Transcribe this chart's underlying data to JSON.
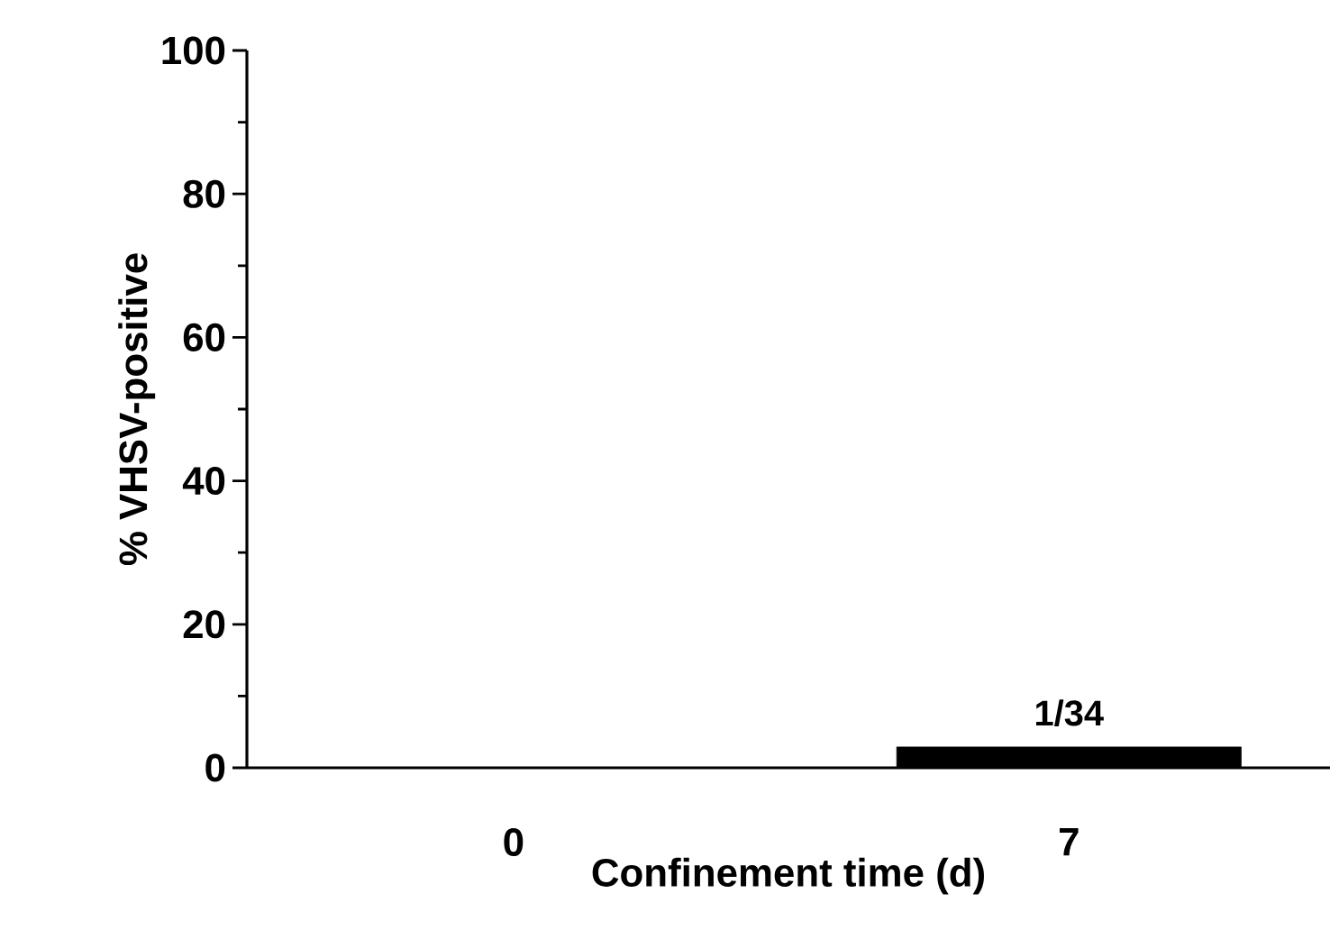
{
  "chart_data": {
    "type": "bar",
    "xlabel": "Confinement time (d)",
    "ylabel": "% VHSV-positive",
    "categories": [
      "0",
      "7"
    ],
    "values": [
      0,
      2.9
    ],
    "value_labels": [
      null,
      "1/34"
    ],
    "color": "#000000",
    "ylim": [
      0,
      100
    ],
    "yticks": [
      0,
      20,
      40,
      60,
      80,
      100
    ],
    "grid": false
  }
}
